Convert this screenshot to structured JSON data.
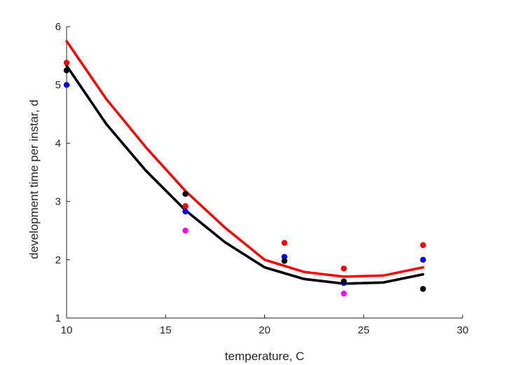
{
  "chart_data": {
    "type": "scatter",
    "xlabel": "temperature, C",
    "ylabel": "development time per instar, d",
    "xlim": [
      10,
      30
    ],
    "ylim": [
      1,
      6
    ],
    "xticks": [
      10,
      15,
      20,
      25,
      30
    ],
    "yticks": [
      1,
      2,
      3,
      4,
      5,
      6
    ],
    "grid": false,
    "series": [
      {
        "color": "#ff0000",
        "type": "scatter",
        "x": [
          10,
          16,
          21,
          24,
          28
        ],
        "y": [
          5.38,
          2.92,
          2.29,
          1.85,
          2.25
        ]
      },
      {
        "color": "#0000ff",
        "type": "scatter",
        "x": [
          10,
          16,
          21,
          24,
          28
        ],
        "y": [
          5.0,
          2.83,
          2.05,
          1.6,
          2.0
        ]
      },
      {
        "color": "#ff00ff",
        "type": "scatter",
        "x": [
          16,
          24
        ],
        "y": [
          2.5,
          1.42
        ]
      },
      {
        "color": "#000000",
        "type": "scatter",
        "x": [
          10,
          16,
          21,
          24,
          28
        ],
        "y": [
          5.25,
          3.13,
          1.98,
          1.63,
          1.5
        ]
      },
      {
        "color": "#ff0000",
        "type": "line",
        "x": [
          10,
          12,
          14,
          16,
          18,
          20,
          22,
          24,
          26,
          28
        ],
        "y": [
          5.75,
          4.76,
          3.93,
          3.18,
          2.55,
          2.0,
          1.79,
          1.71,
          1.73,
          1.87
        ]
      },
      {
        "color": "#0000ff",
        "type": "line",
        "x": [
          10,
          12,
          14,
          16,
          18,
          20,
          22,
          24,
          26,
          28
        ],
        "y": [
          5.33,
          4.33,
          3.53,
          2.85,
          2.3,
          1.87,
          1.67,
          1.59,
          1.61,
          1.75
        ]
      },
      {
        "color": "#000000",
        "type": "line",
        "x": [
          10,
          12,
          14,
          16,
          18,
          20,
          22,
          24,
          26,
          28
        ],
        "y": [
          5.33,
          4.33,
          3.53,
          2.85,
          2.3,
          1.87,
          1.67,
          1.59,
          1.61,
          1.75
        ]
      }
    ]
  }
}
